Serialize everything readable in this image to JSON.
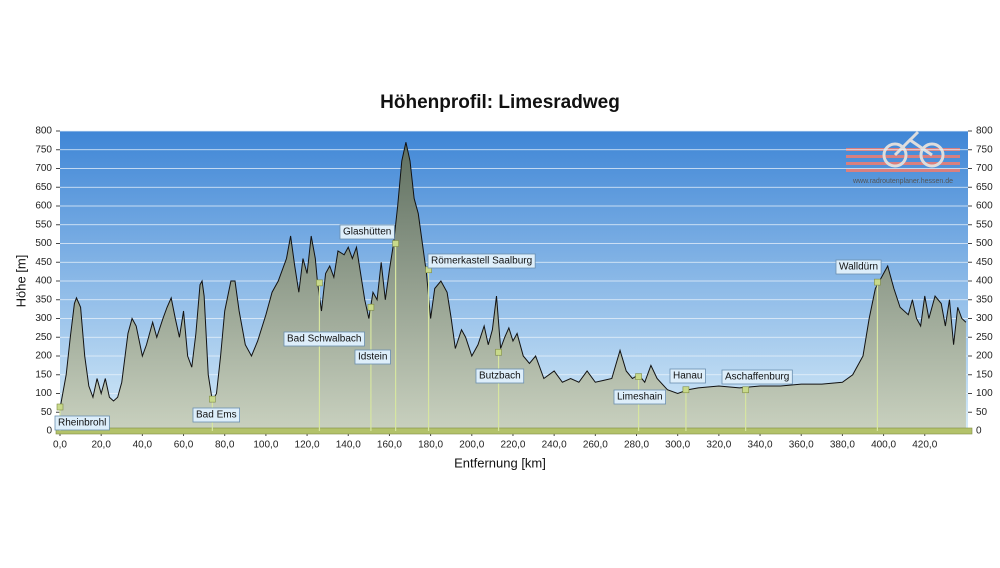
{
  "chart_data": {
    "type": "area",
    "title": "Höhenprofil: Limesradweg",
    "x_label": "Entfernung  [km]",
    "y_label": "Höhe [m]",
    "watermark": "www.radroutenplaner.hessen.de",
    "xlim": [
      0,
      441
    ],
    "ylim": [
      0,
      800
    ],
    "y2lim": [
      0,
      800
    ],
    "grid": true,
    "color": "#7d8a78",
    "xticks": [
      {
        "value": 0,
        "label": "0,0"
      },
      {
        "value": 20,
        "label": "20,0"
      },
      {
        "value": 40,
        "label": "40,0"
      },
      {
        "value": 60,
        "label": "60,0"
      },
      {
        "value": 80,
        "label": "80,0"
      },
      {
        "value": 100,
        "label": "100,0"
      },
      {
        "value": 120,
        "label": "120,0"
      },
      {
        "value": 140,
        "label": "140,0"
      },
      {
        "value": 160,
        "label": "160,0"
      },
      {
        "value": 180,
        "label": "180,0"
      },
      {
        "value": 200,
        "label": "200,0"
      },
      {
        "value": 220,
        "label": "220,0"
      },
      {
        "value": 240,
        "label": "240,0"
      },
      {
        "value": 260,
        "label": "260,0"
      },
      {
        "value": 280,
        "label": "280,0"
      },
      {
        "value": 300,
        "label": "300,0"
      },
      {
        "value": 320,
        "label": "320,0"
      },
      {
        "value": 340,
        "label": "340,0"
      },
      {
        "value": 360,
        "label": "360,0"
      },
      {
        "value": 380,
        "label": "380,0"
      },
      {
        "value": 400,
        "label": "400,0"
      },
      {
        "value": 420,
        "label": "420,0"
      }
    ],
    "yticks": [
      0,
      50,
      100,
      150,
      200,
      250,
      300,
      350,
      400,
      450,
      500,
      550,
      600,
      650,
      700,
      750,
      800
    ],
    "y2ticks": [
      0,
      50,
      100,
      150,
      200,
      250,
      300,
      350,
      400,
      450,
      500,
      550,
      600,
      650,
      700,
      750,
      800
    ],
    "x": [
      0,
      3,
      5,
      7,
      8,
      10,
      12,
      14,
      16,
      18,
      20,
      22,
      24,
      26,
      28,
      30,
      33,
      35,
      37,
      40,
      42,
      45,
      47,
      50,
      52,
      54,
      56,
      58,
      60,
      62,
      64,
      66,
      68,
      69,
      70,
      72,
      74,
      76,
      78,
      80,
      83,
      85,
      87,
      90,
      93,
      96,
      100,
      103,
      106,
      110,
      112,
      114,
      116,
      118,
      120,
      122,
      124,
      125,
      127,
      129,
      131,
      133,
      135,
      138,
      140,
      142,
      144,
      146,
      148,
      150,
      152,
      154,
      156,
      158,
      160,
      162,
      164,
      166,
      168,
      170,
      172,
      174,
      176,
      178,
      180,
      182,
      185,
      188,
      190,
      192,
      195,
      197,
      200,
      203,
      206,
      208,
      210,
      212,
      214,
      216,
      218,
      220,
      222,
      225,
      228,
      231,
      235,
      240,
      244,
      248,
      252,
      256,
      260,
      264,
      268,
      272,
      275,
      278,
      281,
      284,
      287,
      290,
      295,
      300,
      305,
      310,
      320,
      330,
      340,
      350,
      360,
      370,
      380,
      385,
      390,
      393,
      396,
      400,
      402,
      405,
      408,
      412,
      414,
      416,
      418,
      420,
      422,
      425,
      428,
      430,
      432,
      434,
      436,
      438,
      440
    ],
    "values": [
      60,
      150,
      250,
      340,
      355,
      330,
      200,
      120,
      90,
      140,
      100,
      140,
      90,
      80,
      90,
      130,
      260,
      300,
      280,
      200,
      230,
      290,
      250,
      300,
      330,
      355,
      300,
      250,
      320,
      200,
      170,
      260,
      390,
      400,
      360,
      150,
      80,
      100,
      200,
      320,
      400,
      400,
      320,
      230,
      200,
      240,
      310,
      370,
      400,
      460,
      520,
      440,
      370,
      460,
      420,
      520,
      460,
      400,
      320,
      420,
      440,
      410,
      480,
      470,
      490,
      460,
      490,
      420,
      350,
      300,
      370,
      350,
      450,
      350,
      430,
      500,
      600,
      720,
      770,
      720,
      620,
      580,
      500,
      420,
      300,
      380,
      400,
      370,
      300,
      220,
      270,
      250,
      200,
      230,
      280,
      230,
      270,
      360,
      220,
      250,
      275,
      240,
      260,
      200,
      180,
      200,
      140,
      160,
      130,
      140,
      130,
      160,
      130,
      135,
      140,
      215,
      160,
      140,
      150,
      130,
      175,
      140,
      110,
      100,
      110,
      115,
      120,
      115,
      120,
      120,
      125,
      125,
      130,
      150,
      200,
      300,
      380,
      420,
      440,
      380,
      330,
      310,
      350,
      300,
      280,
      360,
      300,
      360,
      340,
      280,
      350,
      230,
      330,
      300,
      290
    ],
    "waypoints": {
      "names": [
        "Rheinbrohl",
        "Bad Ems",
        "Bad Schwalbach",
        "Idstein",
        "Glashütten",
        "Römerkastell Saalburg",
        "Butzbach",
        "Limeshain",
        "Hanau",
        "Aschaffenburg",
        "Walldürn"
      ],
      "x": [
        0,
        74,
        126,
        151,
        163,
        179,
        213,
        281,
        304,
        333,
        397
      ],
      "values": [
        64,
        85,
        395,
        330,
        500,
        430,
        210,
        145,
        110,
        110,
        397
      ]
    }
  }
}
